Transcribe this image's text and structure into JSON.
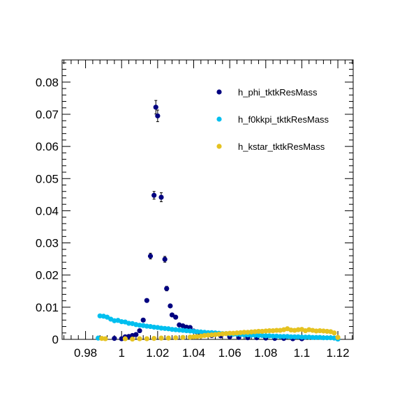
{
  "chart_data": {
    "type": "scatter",
    "title": "",
    "xlabel": "",
    "ylabel": "",
    "xlim": [
      0.967,
      1.1285
    ],
    "ylim": [
      0,
      0.0869
    ],
    "x_ticks": [
      0.98,
      1.0,
      1.02,
      1.04,
      1.06,
      1.08,
      1.1,
      1.12
    ],
    "x_tick_labels": [
      "0.98",
      "1",
      "1.02",
      "1.04",
      "1.06",
      "1.08",
      "1.1",
      "1.12"
    ],
    "y_ticks": [
      0,
      0.01,
      0.02,
      0.03,
      0.04,
      0.05,
      0.06,
      0.07,
      0.08
    ],
    "y_tick_labels": [
      "0",
      "0.01",
      "0.02",
      "0.03",
      "0.04",
      "0.05",
      "0.06",
      "0.07",
      "0.08"
    ],
    "grid": false,
    "legend_position": "top-right",
    "series": [
      {
        "name": "h_phi_tktkResMass",
        "color": "#000080",
        "points": [
          [
            0.996,
            0.0003,
            0
          ],
          [
            1.0,
            0.0002,
            0
          ],
          [
            1.002,
            0.0008,
            0
          ],
          [
            1.004,
            0.0009,
            0
          ],
          [
            1.006,
            0.0012,
            0
          ],
          [
            1.008,
            0.0015,
            0
          ],
          [
            1.01,
            0.0027,
            0.0002
          ],
          [
            1.012,
            0.006,
            0.0003
          ],
          [
            1.014,
            0.0121,
            0.0005
          ],
          [
            1.016,
            0.0259,
            0.0009
          ],
          [
            1.018,
            0.0448,
            0.0012
          ],
          [
            1.019,
            0.0722,
            0.0021
          ],
          [
            1.02,
            0.0695,
            0.0018
          ],
          [
            1.022,
            0.0442,
            0.0014
          ],
          [
            1.024,
            0.0249,
            0.0009
          ],
          [
            1.025,
            0.0158,
            0.0007
          ],
          [
            1.027,
            0.0104,
            0.0005
          ],
          [
            1.028,
            0.0076,
            0.0004
          ],
          [
            1.03,
            0.0069,
            0.0003
          ],
          [
            1.032,
            0.0045,
            0.0003
          ],
          [
            1.034,
            0.0042,
            0.0002
          ],
          [
            1.036,
            0.0038,
            0.0002
          ],
          [
            1.038,
            0.0037,
            0.0002
          ],
          [
            1.04,
            0.0026,
            0
          ],
          [
            1.042,
            0.0022,
            0
          ],
          [
            1.044,
            0.0018,
            0
          ],
          [
            1.046,
            0.0016,
            0
          ],
          [
            1.048,
            0.0014,
            0
          ],
          [
            1.05,
            0.0012,
            0
          ],
          [
            1.055,
            0.0011,
            0
          ],
          [
            1.06,
            0.0008,
            0
          ],
          [
            1.065,
            0.0006,
            0
          ],
          [
            1.07,
            0.0005,
            0
          ],
          [
            1.075,
            0.0005,
            0
          ],
          [
            1.08,
            0.0004,
            0
          ],
          [
            1.085,
            0.0003,
            0
          ],
          [
            1.09,
            0.0003,
            0
          ],
          [
            1.095,
            0.0002,
            0
          ],
          [
            1.1,
            0.0002,
            0
          ]
        ]
      },
      {
        "name": "h_f0kkpi_tktkResMass",
        "color": "#00bfef",
        "points": [
          [
            0.987,
            0.0004
          ],
          [
            0.988,
            0.0073
          ],
          [
            0.99,
            0.0072
          ],
          [
            0.992,
            0.0069
          ],
          [
            0.994,
            0.0063
          ],
          [
            0.996,
            0.0058
          ],
          [
            0.998,
            0.0059
          ],
          [
            1.0,
            0.0055
          ],
          [
            1.002,
            0.0054
          ],
          [
            1.004,
            0.005
          ],
          [
            1.006,
            0.0049
          ],
          [
            1.008,
            0.0046
          ],
          [
            1.01,
            0.0044
          ],
          [
            1.012,
            0.0043
          ],
          [
            1.014,
            0.0041
          ],
          [
            1.016,
            0.004
          ],
          [
            1.018,
            0.0038
          ],
          [
            1.02,
            0.0037
          ],
          [
            1.022,
            0.0035
          ],
          [
            1.024,
            0.0034
          ],
          [
            1.026,
            0.0033
          ],
          [
            1.028,
            0.0031
          ],
          [
            1.03,
            0.003
          ],
          [
            1.032,
            0.0029
          ],
          [
            1.034,
            0.0028
          ],
          [
            1.036,
            0.0027
          ],
          [
            1.038,
            0.0026
          ],
          [
            1.04,
            0.0025
          ],
          [
            1.042,
            0.0024
          ],
          [
            1.044,
            0.0023
          ],
          [
            1.046,
            0.0022
          ],
          [
            1.048,
            0.0021
          ],
          [
            1.05,
            0.0021
          ],
          [
            1.052,
            0.002
          ],
          [
            1.054,
            0.0019
          ],
          [
            1.056,
            0.0018
          ],
          [
            1.058,
            0.0018
          ],
          [
            1.06,
            0.0017
          ],
          [
            1.062,
            0.0016
          ],
          [
            1.064,
            0.0016
          ],
          [
            1.066,
            0.0015
          ],
          [
            1.068,
            0.0014
          ],
          [
            1.07,
            0.0014
          ],
          [
            1.072,
            0.0013
          ],
          [
            1.074,
            0.0013
          ],
          [
            1.076,
            0.0012
          ],
          [
            1.078,
            0.0012
          ],
          [
            1.08,
            0.0011
          ],
          [
            1.082,
            0.0011
          ],
          [
            1.084,
            0.001
          ],
          [
            1.086,
            0.001
          ],
          [
            1.088,
            0.0009
          ],
          [
            1.09,
            0.0009
          ],
          [
            1.092,
            0.0009
          ],
          [
            1.094,
            0.0008
          ],
          [
            1.096,
            0.0008
          ],
          [
            1.098,
            0.0008
          ],
          [
            1.1,
            0.0007
          ],
          [
            1.102,
            0.0007
          ],
          [
            1.104,
            0.0007
          ],
          [
            1.106,
            0.0006
          ],
          [
            1.108,
            0.0006
          ],
          [
            1.11,
            0.0006
          ],
          [
            1.112,
            0.0005
          ],
          [
            1.114,
            0.0005
          ],
          [
            1.116,
            0.0005
          ],
          [
            1.118,
            0.0004
          ],
          [
            1.12,
            0.0001
          ]
        ]
      },
      {
        "name": "h_kstar_tktkResMass",
        "color": "#e5c220",
        "points": [
          [
            0.989,
            0.0003
          ],
          [
            0.991,
            0.0002
          ],
          [
            1.002,
            0.0002
          ],
          [
            1.006,
            0.0001
          ],
          [
            1.01,
            0.0002
          ],
          [
            1.014,
            0.0002
          ],
          [
            1.018,
            0.0003
          ],
          [
            1.022,
            0.0004
          ],
          [
            1.026,
            0.0004
          ],
          [
            1.03,
            0.0005
          ],
          [
            1.034,
            0.0006
          ],
          [
            1.038,
            0.0007
          ],
          [
            1.04,
            0.0008
          ],
          [
            1.042,
            0.0009
          ],
          [
            1.044,
            0.001
          ],
          [
            1.046,
            0.0012
          ],
          [
            1.048,
            0.0013
          ],
          [
            1.05,
            0.0014
          ],
          [
            1.052,
            0.0015
          ],
          [
            1.054,
            0.0016
          ],
          [
            1.056,
            0.0017
          ],
          [
            1.058,
            0.0018
          ],
          [
            1.06,
            0.0019
          ],
          [
            1.062,
            0.0019
          ],
          [
            1.064,
            0.002
          ],
          [
            1.066,
            0.0021
          ],
          [
            1.068,
            0.0022
          ],
          [
            1.07,
            0.0022
          ],
          [
            1.072,
            0.0023
          ],
          [
            1.074,
            0.0024
          ],
          [
            1.076,
            0.0025
          ],
          [
            1.078,
            0.0025
          ],
          [
            1.08,
            0.0026
          ],
          [
            1.082,
            0.0027
          ],
          [
            1.084,
            0.0027
          ],
          [
            1.086,
            0.0028
          ],
          [
            1.088,
            0.0028
          ],
          [
            1.09,
            0.003
          ],
          [
            1.092,
            0.0033
          ],
          [
            1.094,
            0.0029
          ],
          [
            1.096,
            0.0028
          ],
          [
            1.098,
            0.003
          ],
          [
            1.1,
            0.0031
          ],
          [
            1.102,
            0.0027
          ],
          [
            1.104,
            0.003
          ],
          [
            1.106,
            0.0028
          ],
          [
            1.108,
            0.0026
          ],
          [
            1.11,
            0.0027
          ],
          [
            1.112,
            0.0026
          ],
          [
            1.114,
            0.0025
          ],
          [
            1.116,
            0.0024
          ],
          [
            1.118,
            0.002
          ],
          [
            1.12,
            0.0006
          ]
        ]
      }
    ]
  }
}
